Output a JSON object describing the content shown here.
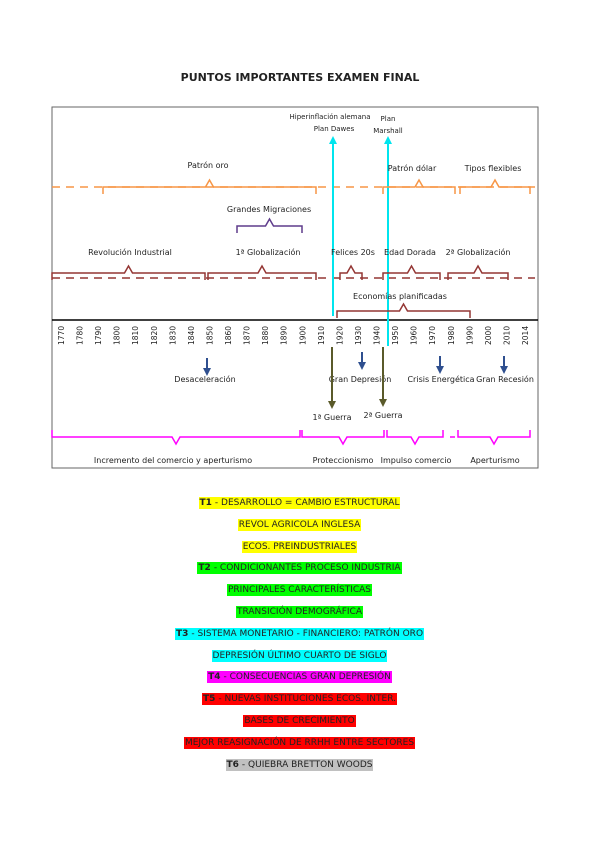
{
  "title": "PUNTOS IMPORTANTES EXAMEN FINAL",
  "diagram": {
    "dawes": {
      "line1": "Hiperinflación alemana",
      "line2": "Plan Dawes"
    },
    "marshall": {
      "line1": "Plan",
      "line2": "Marshall"
    },
    "monetary": [
      "Patrón oro",
      "Patrón dólar",
      "Tipos flexibles"
    ],
    "migrations": "Grandes Migraciones",
    "eras": [
      "Revolución Industrial",
      "1ª Globalización",
      "Felices 20s",
      "Edad Dorada",
      "2ª Globalización"
    ],
    "planned": "Economías planificadas",
    "years": [
      1770,
      1780,
      1790,
      1800,
      1810,
      1820,
      1830,
      1840,
      1850,
      1860,
      1870,
      1880,
      1890,
      1900,
      1910,
      1920,
      1930,
      1940,
      1950,
      1960,
      1970,
      1980,
      1990,
      2000,
      2010,
      2014
    ],
    "crises": [
      "Desaceleración",
      "Gran Depresión",
      "Crisis Energética",
      "Gran Recesión"
    ],
    "wars": [
      "1ª Guerra",
      "2ª Guerra"
    ],
    "trade": [
      "Incremento del comercio y aperturismo",
      "Proteccionismo",
      "Impulso comercio",
      "Aperturismo"
    ]
  },
  "items": [
    {
      "code": "T1",
      "text": "- DESARROLLO = CAMBIO ESTRUCTURAL",
      "highlight": "#ffff00"
    },
    {
      "text": "REVOL AGRICOLA INGLESA",
      "highlight": "#ffff00"
    },
    {
      "text": "ECOS. PREINDUSTRIALES",
      "highlight": "#ffff00"
    },
    {
      "code": "T2",
      "text": "- CONDICIONANTES PROCESO INDUSTRIA",
      "highlight": "#00ff00"
    },
    {
      "text": "PRINCIPALES CARACTERÍSTICAS",
      "highlight": "#00ff00"
    },
    {
      "text": "TRANSICIÓN DEMOGRÁFICA",
      "highlight": "#00ff00"
    },
    {
      "code": "T3",
      "text": "- SISTEMA MONETARIO - FINANCIERO: PATRÓN ORO",
      "highlight": "#00ffff"
    },
    {
      "text": "DEPRESIÓN ÚLTIMO CUARTO DE SIGLO",
      "highlight": "#00ffff"
    },
    {
      "code": "T4",
      "text": "- CONSECUENCIAS GRAN DEPRESIÓN",
      "highlight": "#ff00ff"
    },
    {
      "code": "T5",
      "text": "- NUEVAS INSTITUCIONES ECOS. INTER.",
      "highlight": "#ff0000"
    },
    {
      "text": "BASES DE CRECIMIENTO",
      "highlight": "#ff0000"
    },
    {
      "text": "MEJOR REASIGNACIÓN DE RRHH ENTRE SECTORES",
      "highlight": "#ff0000"
    },
    {
      "code": "T6",
      "text": "- QUIEBRA BRETTON WOODS",
      "highlight": "#c0c0c0"
    }
  ]
}
